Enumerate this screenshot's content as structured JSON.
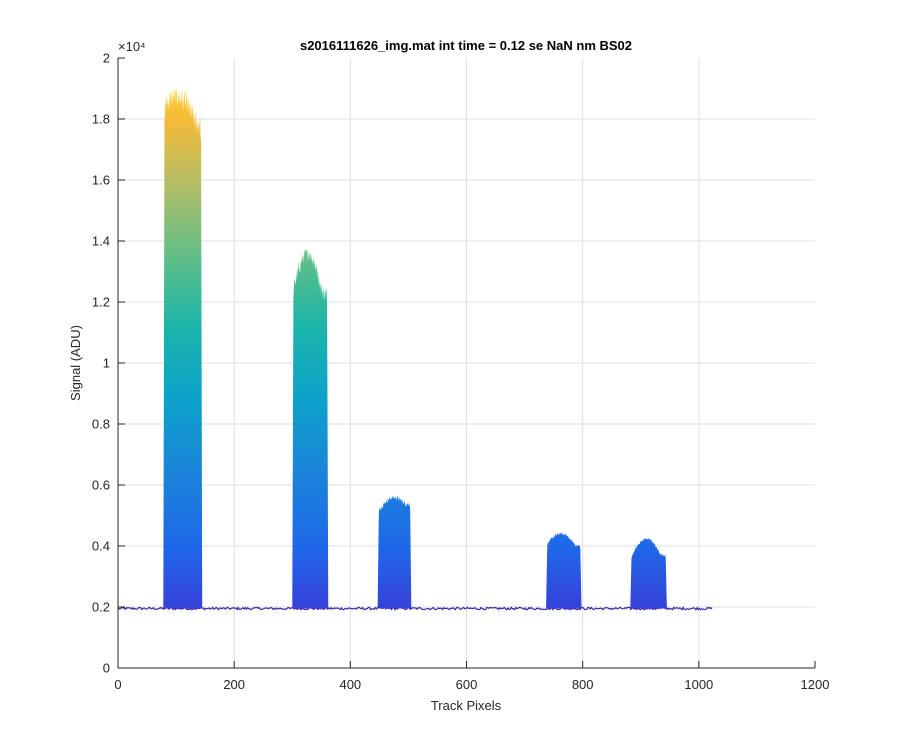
{
  "chart_data": {
    "type": "area",
    "title": "s2016111626_img.mat int time = 0.12 se  NaN nm BS02",
    "xlabel": "Track Pixels",
    "ylabel": "Signal (ADU)",
    "y_exponent_label": "×10⁴",
    "xlim": [
      0,
      1200
    ],
    "ylim": [
      0,
      20000
    ],
    "xticks": [
      0,
      200,
      400,
      600,
      800,
      1000,
      1200
    ],
    "xtick_labels": [
      "0",
      "200",
      "400",
      "600",
      "800",
      "1000",
      "1200"
    ],
    "yticks": [
      0,
      2000,
      4000,
      6000,
      8000,
      10000,
      12000,
      14000,
      16000,
      18000,
      20000
    ],
    "ytick_labels": [
      "0",
      "0.2",
      "0.4",
      "0.6",
      "0.8",
      "1",
      "1.2",
      "1.4",
      "1.6",
      "1.8",
      "2"
    ],
    "grid": true,
    "baseline": 1950,
    "x_extent": [
      1,
      1024
    ],
    "colormap": "parula",
    "peaks": [
      {
        "x_start": 78,
        "x_end": 145,
        "peak": 19000,
        "edge_left": 18500,
        "edge_right": 17800
      },
      {
        "x_start": 300,
        "x_end": 362,
        "peak": 13700,
        "edge_left": 12500,
        "edge_right": 12300
      },
      {
        "x_start": 447,
        "x_end": 505,
        "peak": 5700,
        "edge_left": 5200,
        "edge_right": 5400
      },
      {
        "x_start": 737,
        "x_end": 798,
        "peak": 4450,
        "edge_left": 4100,
        "edge_right": 4000
      },
      {
        "x_start": 882,
        "x_end": 945,
        "peak": 4250,
        "edge_left": 3700,
        "edge_right": 3700
      }
    ]
  }
}
